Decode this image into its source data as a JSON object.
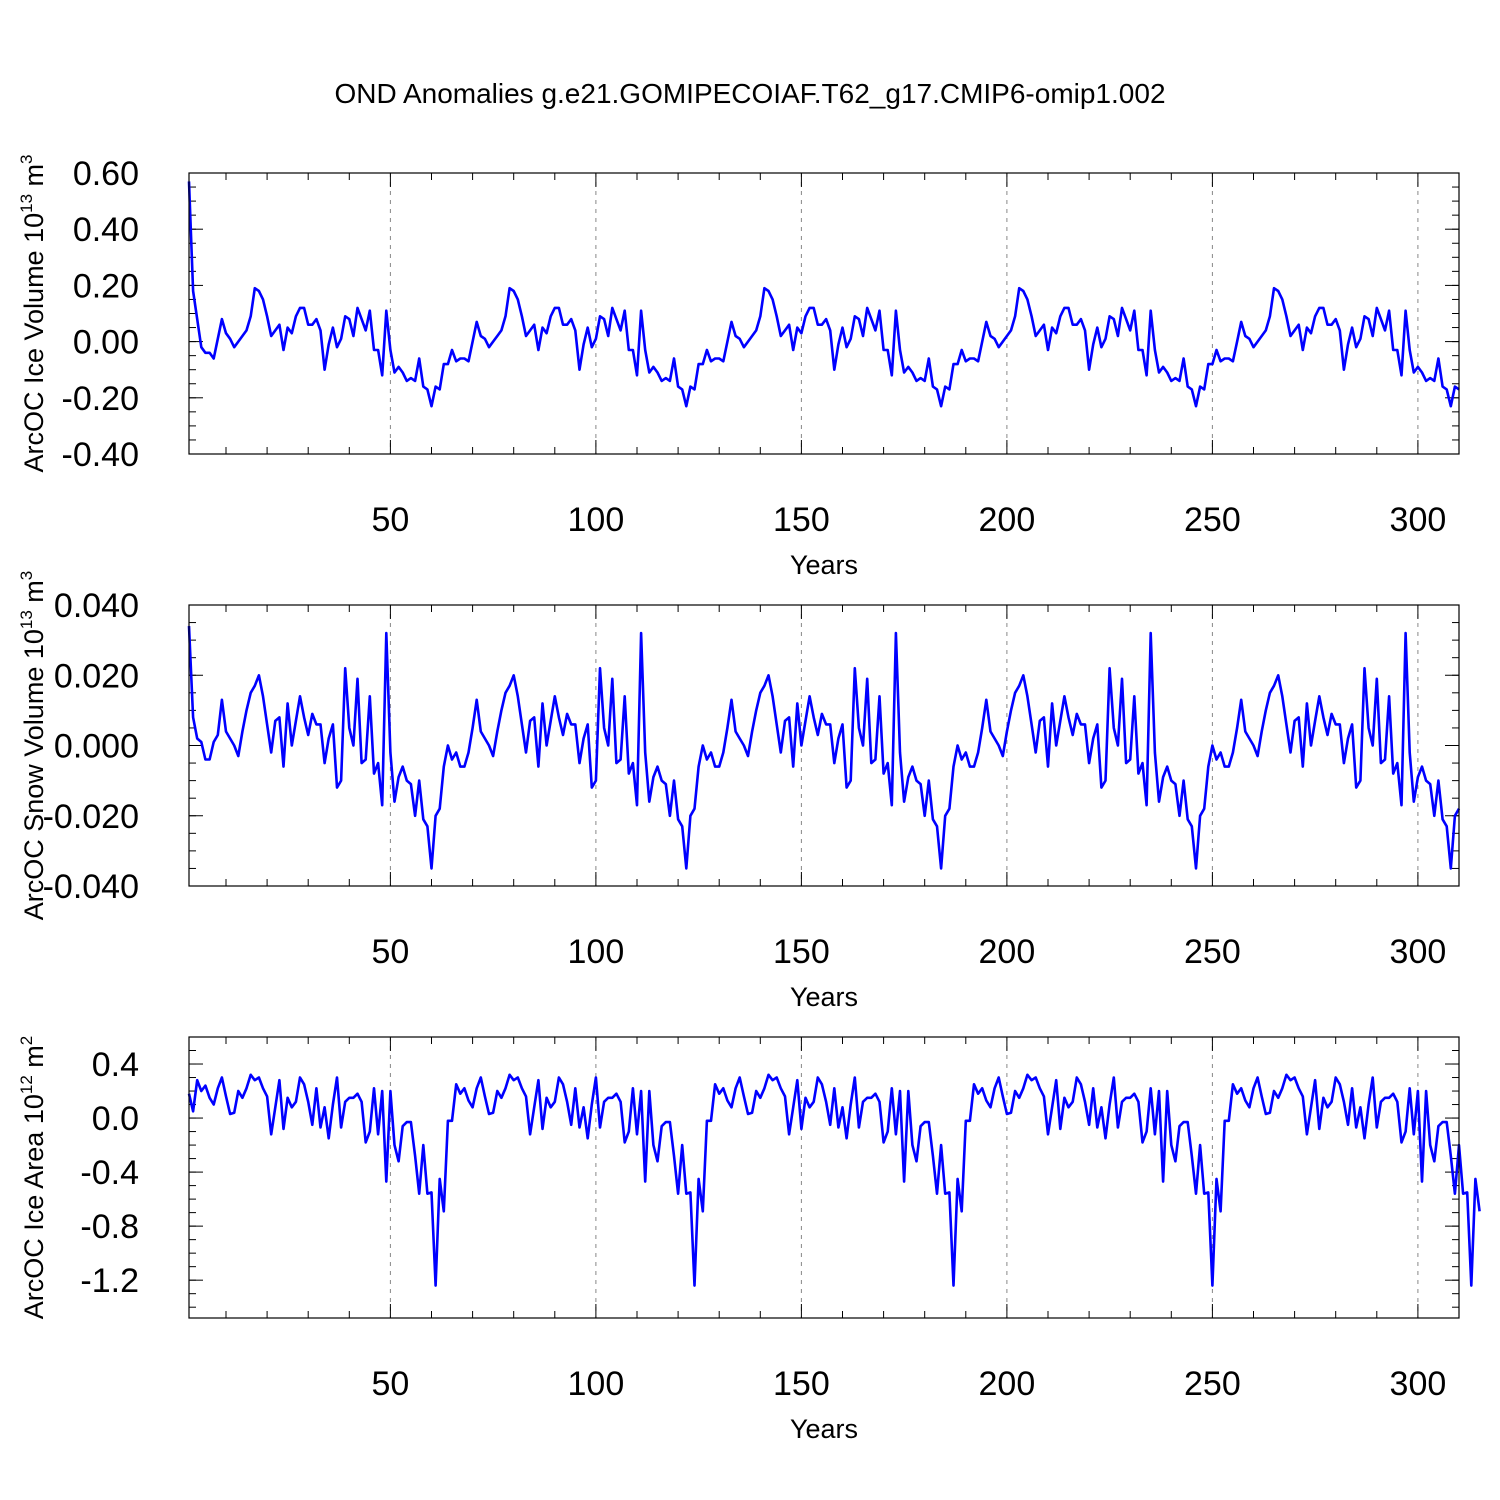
{
  "title": "OND Anomalies g.e21.GOMIPECOIAF.T62_g17.CMIP6-omip1.002",
  "chart_data": [
    {
      "type": "line",
      "ylabel": {
        "prefix": "ArcOC Ice Volume 10",
        "exp": "13",
        "mid": " m",
        "exp2": "3"
      },
      "xlabel": "Years",
      "xlim": [
        1,
        310
      ],
      "ylim": [
        -0.4,
        0.6
      ],
      "yticks": [
        0.6,
        0.4,
        0.2,
        0.0,
        -0.2,
        -0.4
      ],
      "ytick_labels": [
        "0.60",
        "0.40",
        "0.20",
        "0.00",
        "-0.20",
        "-0.40"
      ],
      "xticks": [
        50,
        100,
        150,
        200,
        250,
        300
      ],
      "xtick_labels": [
        "50",
        "100",
        "150",
        "200",
        "250",
        "300"
      ],
      "color": "#0000ff",
      "values": [
        0.57,
        0.18,
        0.08,
        -0.02,
        -0.04,
        -0.04,
        -0.06,
        0.01,
        0.08,
        0.03,
        0.01,
        -0.02,
        0.0,
        0.02,
        0.04,
        0.09,
        0.19,
        0.18,
        0.15,
        0.09,
        0.02,
        0.04,
        0.06,
        -0.03,
        0.05,
        0.03,
        0.09,
        0.12,
        0.12,
        0.06,
        0.06,
        0.08,
        0.04,
        -0.1,
        -0.01,
        0.05,
        -0.02,
        0.01,
        0.09,
        0.08,
        0.02,
        0.12,
        0.08,
        0.04,
        0.11,
        -0.03,
        -0.03,
        -0.12,
        0.11,
        -0.03,
        -0.11,
        -0.09,
        -0.11,
        -0.14,
        -0.13,
        -0.14,
        -0.06,
        -0.16,
        -0.17,
        -0.23,
        -0.16,
        -0.17,
        -0.08,
        -0.08,
        -0.03,
        -0.07,
        -0.06,
        -0.06,
        -0.07,
        0.0,
        0.07,
        0.02,
        0.01,
        -0.02,
        0.0,
        0.02,
        0.04,
        0.09,
        0.19,
        0.18,
        0.15,
        0.09,
        0.02,
        0.04,
        0.06,
        -0.03,
        0.05,
        0.03,
        0.09,
        0.12,
        0.12,
        0.06,
        0.06,
        0.08,
        0.04,
        -0.1,
        -0.01,
        0.05,
        -0.02,
        0.01,
        0.09,
        0.08,
        0.02,
        0.12,
        0.08,
        0.04,
        0.11,
        -0.03,
        -0.03,
        -0.12,
        0.11,
        -0.03,
        -0.11,
        -0.09,
        -0.11,
        -0.14,
        -0.13,
        -0.14,
        -0.06,
        -0.16,
        -0.17,
        -0.23,
        -0.16,
        -0.17,
        -0.08,
        -0.08,
        -0.03,
        -0.07,
        -0.06,
        -0.06,
        -0.07,
        0.0,
        0.07,
        0.02,
        0.01,
        -0.02,
        0.0,
        0.02,
        0.04,
        0.09,
        0.19,
        0.18,
        0.15,
        0.09,
        0.02,
        0.04,
        0.06,
        -0.03,
        0.05,
        0.03,
        0.09,
        0.12,
        0.12,
        0.06,
        0.06,
        0.08,
        0.04,
        -0.1,
        -0.01,
        0.05,
        -0.02,
        0.01,
        0.09,
        0.08,
        0.02,
        0.12,
        0.08,
        0.04,
        0.11,
        -0.03,
        -0.03,
        -0.12,
        0.11,
        -0.03,
        -0.11,
        -0.09,
        -0.11,
        -0.14,
        -0.13,
        -0.14,
        -0.06,
        -0.16,
        -0.17,
        -0.23,
        -0.16,
        -0.17,
        -0.08,
        -0.08,
        -0.03,
        -0.07,
        -0.06,
        -0.06,
        -0.07,
        0.0,
        0.07,
        0.02,
        0.01,
        -0.02,
        0.0,
        0.02,
        0.04,
        0.09,
        0.19,
        0.18,
        0.15,
        0.09,
        0.02,
        0.04,
        0.06,
        -0.03,
        0.05,
        0.03,
        0.09,
        0.12,
        0.12,
        0.06,
        0.06,
        0.08,
        0.04,
        -0.1,
        -0.01,
        0.05,
        -0.02,
        0.01,
        0.09,
        0.08,
        0.02,
        0.12,
        0.08,
        0.04,
        0.11,
        -0.03,
        -0.03,
        -0.12,
        0.11,
        -0.03,
        -0.11,
        -0.09,
        -0.11,
        -0.14,
        -0.13,
        -0.14,
        -0.06,
        -0.16,
        -0.17,
        -0.23,
        -0.16,
        -0.17,
        -0.08,
        -0.08,
        -0.03,
        -0.07,
        -0.06,
        -0.06,
        -0.07,
        0.0,
        0.07,
        0.02,
        0.01,
        -0.02,
        0.0,
        0.02,
        0.04,
        0.09,
        0.19,
        0.18,
        0.15,
        0.09,
        0.02,
        0.04,
        0.06,
        -0.03,
        0.05,
        0.03,
        0.09,
        0.12,
        0.12,
        0.06,
        0.06,
        0.08,
        0.04,
        -0.1,
        -0.01,
        0.05,
        -0.02,
        0.01,
        0.09,
        0.08,
        0.02,
        0.12,
        0.08,
        0.04,
        0.11,
        -0.03,
        -0.03,
        -0.12,
        0.11,
        -0.03,
        -0.11,
        -0.09,
        -0.11,
        -0.14,
        -0.13,
        -0.14,
        -0.06,
        -0.16,
        -0.17,
        -0.23,
        -0.16,
        -0.17
      ]
    },
    {
      "type": "line",
      "ylabel": {
        "prefix": "ArcOC Snow Volume 10",
        "exp": "13",
        "mid": " m",
        "exp2": "3"
      },
      "xlabel": "Years",
      "xlim": [
        1,
        310
      ],
      "ylim": [
        -0.04,
        0.04
      ],
      "yticks": [
        0.04,
        0.02,
        0.0,
        -0.02,
        -0.04
      ],
      "ytick_labels": [
        "0.040",
        "0.020",
        "0.000",
        "-0.020",
        "-0.040"
      ],
      "xticks": [
        50,
        100,
        150,
        200,
        250,
        300
      ],
      "xtick_labels": [
        "50",
        "100",
        "150",
        "200",
        "250",
        "300"
      ],
      "color": "#0000ff",
      "values": [
        0.034,
        0.008,
        0.002,
        0.001,
        -0.004,
        -0.004,
        0.001,
        0.003,
        0.013,
        0.004,
        0.002,
        0.0,
        -0.003,
        0.004,
        0.01,
        0.015,
        0.017,
        0.02,
        0.014,
        0.006,
        -0.002,
        0.007,
        0.008,
        -0.006,
        0.012,
        0.0,
        0.007,
        0.014,
        0.008,
        0.003,
        0.009,
        0.006,
        0.006,
        -0.005,
        0.002,
        0.006,
        -0.012,
        -0.01,
        0.022,
        0.005,
        0.0,
        0.019,
        -0.005,
        -0.004,
        0.014,
        -0.008,
        -0.005,
        -0.017,
        0.032,
        -0.002,
        -0.016,
        -0.009,
        -0.006,
        -0.01,
        -0.011,
        -0.02,
        -0.01,
        -0.021,
        -0.023,
        -0.035,
        -0.02,
        -0.018,
        -0.006,
        0.0,
        -0.004,
        -0.002,
        -0.006,
        -0.006,
        -0.002,
        0.005,
        0.013,
        0.004,
        0.002,
        0.0,
        -0.003,
        0.004,
        0.01,
        0.015,
        0.017,
        0.02,
        0.014,
        0.006,
        -0.002,
        0.007,
        0.008,
        -0.006,
        0.012,
        0.0,
        0.007,
        0.014,
        0.008,
        0.003,
        0.009,
        0.006,
        0.006,
        -0.005,
        0.002,
        0.006,
        -0.012,
        -0.01,
        0.022,
        0.005,
        0.0,
        0.019,
        -0.005,
        -0.004,
        0.014,
        -0.008,
        -0.005,
        -0.017,
        0.032,
        -0.002,
        -0.016,
        -0.009,
        -0.006,
        -0.01,
        -0.011,
        -0.02,
        -0.01,
        -0.021,
        -0.023,
        -0.035,
        -0.02,
        -0.018,
        -0.006,
        0.0,
        -0.004,
        -0.002,
        -0.006,
        -0.006,
        -0.002,
        0.005,
        0.013,
        0.004,
        0.002,
        0.0,
        -0.003,
        0.004,
        0.01,
        0.015,
        0.017,
        0.02,
        0.014,
        0.006,
        -0.002,
        0.007,
        0.008,
        -0.006,
        0.012,
        0.0,
        0.007,
        0.014,
        0.008,
        0.003,
        0.009,
        0.006,
        0.006,
        -0.005,
        0.002,
        0.006,
        -0.012,
        -0.01,
        0.022,
        0.005,
        0.0,
        0.019,
        -0.005,
        -0.004,
        0.014,
        -0.008,
        -0.005,
        -0.017,
        0.032,
        -0.002,
        -0.016,
        -0.009,
        -0.006,
        -0.01,
        -0.011,
        -0.02,
        -0.01,
        -0.021,
        -0.023,
        -0.035,
        -0.02,
        -0.018,
        -0.006,
        0.0,
        -0.004,
        -0.002,
        -0.006,
        -0.006,
        -0.002,
        0.005,
        0.013,
        0.004,
        0.002,
        0.0,
        -0.003,
        0.004,
        0.01,
        0.015,
        0.017,
        0.02,
        0.014,
        0.006,
        -0.002,
        0.007,
        0.008,
        -0.006,
        0.012,
        0.0,
        0.007,
        0.014,
        0.008,
        0.003,
        0.009,
        0.006,
        0.006,
        -0.005,
        0.002,
        0.006,
        -0.012,
        -0.01,
        0.022,
        0.005,
        0.0,
        0.019,
        -0.005,
        -0.004,
        0.014,
        -0.008,
        -0.005,
        -0.017,
        0.032,
        -0.002,
        -0.016,
        -0.009,
        -0.006,
        -0.01,
        -0.011,
        -0.02,
        -0.01,
        -0.021,
        -0.023,
        -0.035,
        -0.02,
        -0.018,
        -0.006,
        0.0,
        -0.004,
        -0.002,
        -0.006,
        -0.006,
        -0.002,
        0.005,
        0.013,
        0.004,
        0.002,
        0.0,
        -0.003,
        0.004,
        0.01,
        0.015,
        0.017,
        0.02,
        0.014,
        0.006,
        -0.002,
        0.007,
        0.008,
        -0.006,
        0.012,
        0.0,
        0.007,
        0.014,
        0.008,
        0.003,
        0.009,
        0.006,
        0.006,
        -0.005,
        0.002,
        0.006,
        -0.012,
        -0.01,
        0.022,
        0.005,
        0.0,
        0.019,
        -0.005,
        -0.004,
        0.014,
        -0.008,
        -0.005,
        -0.017,
        0.032,
        -0.002,
        -0.016,
        -0.009,
        -0.006,
        -0.01,
        -0.011,
        -0.02,
        -0.01,
        -0.021,
        -0.023,
        -0.035,
        -0.02,
        -0.018
      ]
    },
    {
      "type": "line",
      "ylabel": {
        "prefix": "ArcOC Ice Area 10",
        "exp": "12",
        "mid": " m",
        "exp2": "2"
      },
      "xlabel": "Years",
      "xlim": [
        1,
        310
      ],
      "ylim": [
        -1.48,
        0.6
      ],
      "yticks": [
        0.4,
        0.0,
        -0.4,
        -0.8,
        -1.2
      ],
      "ytick_labels": [
        "0.4",
        "0.0",
        "-0.4",
        "-0.8",
        "-1.2"
      ],
      "xticks": [
        50,
        100,
        150,
        200,
        250,
        300
      ],
      "xtick_labels": [
        "50",
        "100",
        "150",
        "200",
        "250",
        "300"
      ],
      "color": "#0000ff",
      "values": [
        0.18,
        0.05,
        0.28,
        0.2,
        0.24,
        0.15,
        0.1,
        0.22,
        0.3,
        0.16,
        0.03,
        0.04,
        0.2,
        0.15,
        0.22,
        0.32,
        0.28,
        0.3,
        0.22,
        0.16,
        -0.12,
        0.08,
        0.28,
        -0.08,
        0.15,
        0.08,
        0.12,
        0.3,
        0.25,
        0.12,
        -0.05,
        0.22,
        -0.07,
        0.08,
        -0.15,
        0.1,
        0.3,
        -0.07,
        0.12,
        0.15,
        0.15,
        0.18,
        0.12,
        -0.18,
        -0.1,
        0.22,
        -0.12,
        0.2,
        -0.47,
        0.2,
        -0.2,
        -0.32,
        -0.06,
        -0.03,
        -0.03,
        -0.28,
        -0.56,
        -0.2,
        -0.56,
        -0.55,
        -1.24,
        -0.45,
        -0.69,
        -0.02,
        -0.02,
        0.25,
        0.18,
        0.22,
        0.13,
        0.08,
        0.22,
        0.3,
        0.16,
        0.03,
        0.04,
        0.2,
        0.15,
        0.22,
        0.32,
        0.28,
        0.3,
        0.22,
        0.16,
        -0.12,
        0.08,
        0.28,
        -0.08,
        0.15,
        0.08,
        0.12,
        0.3,
        0.25,
        0.12,
        -0.05,
        0.22,
        -0.07,
        0.08,
        -0.15,
        0.1,
        0.3,
        -0.07,
        0.12,
        0.15,
        0.15,
        0.18,
        0.12,
        -0.18,
        -0.1,
        0.22,
        -0.12,
        0.2,
        -0.47,
        0.2,
        -0.2,
        -0.32,
        -0.06,
        -0.03,
        -0.03,
        -0.28,
        -0.56,
        -0.2,
        -0.56,
        -0.55,
        -1.24,
        -0.45,
        -0.69,
        -0.02,
        -0.02,
        0.25,
        0.18,
        0.22,
        0.13,
        0.08,
        0.22,
        0.3,
        0.16,
        0.03,
        0.04,
        0.2,
        0.15,
        0.22,
        0.32,
        0.28,
        0.3,
        0.22,
        0.16,
        -0.12,
        0.08,
        0.28,
        -0.08,
        0.15,
        0.08,
        0.12,
        0.3,
        0.25,
        0.12,
        -0.05,
        0.22,
        -0.07,
        0.08,
        -0.15,
        0.1,
        0.3,
        -0.07,
        0.12,
        0.15,
        0.15,
        0.18,
        0.12,
        -0.18,
        -0.1,
        0.22,
        -0.12,
        0.2,
        -0.47,
        0.2,
        -0.2,
        -0.32,
        -0.06,
        -0.03,
        -0.03,
        -0.28,
        -0.56,
        -0.2,
        -0.56,
        -0.55,
        -1.24,
        -0.45,
        -0.69,
        -0.02,
        -0.02,
        0.25,
        0.18,
        0.22,
        0.13,
        0.08,
        0.22,
        0.3,
        0.16,
        0.03,
        0.04,
        0.2,
        0.15,
        0.22,
        0.32,
        0.28,
        0.3,
        0.22,
        0.16,
        -0.12,
        0.08,
        0.28,
        -0.08,
        0.15,
        0.08,
        0.12,
        0.3,
        0.25,
        0.12,
        -0.05,
        0.22,
        -0.07,
        0.08,
        -0.15,
        0.1,
        0.3,
        -0.07,
        0.12,
        0.15,
        0.15,
        0.18,
        0.12,
        -0.18,
        -0.1,
        0.22,
        -0.12,
        0.2,
        -0.47,
        0.2,
        -0.2,
        -0.32,
        -0.06,
        -0.03,
        -0.03,
        -0.28,
        -0.56,
        -0.2,
        -0.56,
        -0.55,
        -1.24,
        -0.45,
        -0.69,
        -0.02,
        -0.02,
        0.25,
        0.18,
        0.22,
        0.13,
        0.08,
        0.22,
        0.3,
        0.16,
        0.03,
        0.04,
        0.2,
        0.15,
        0.22,
        0.32,
        0.28,
        0.3,
        0.22,
        0.16,
        -0.12,
        0.08,
        0.28,
        -0.08,
        0.15,
        0.08,
        0.12,
        0.3,
        0.25,
        0.12,
        -0.05,
        0.22,
        -0.07,
        0.08,
        -0.15,
        0.1,
        0.3,
        -0.07,
        0.12,
        0.15,
        0.15,
        0.18,
        0.12,
        -0.18,
        -0.1,
        0.22,
        -0.12,
        0.2,
        -0.47,
        0.2,
        -0.2,
        -0.32,
        -0.06,
        -0.03,
        -0.03,
        -0.28,
        -0.56,
        -0.2,
        -0.56,
        -0.55,
        -1.24,
        -0.45,
        -0.69
      ]
    }
  ]
}
